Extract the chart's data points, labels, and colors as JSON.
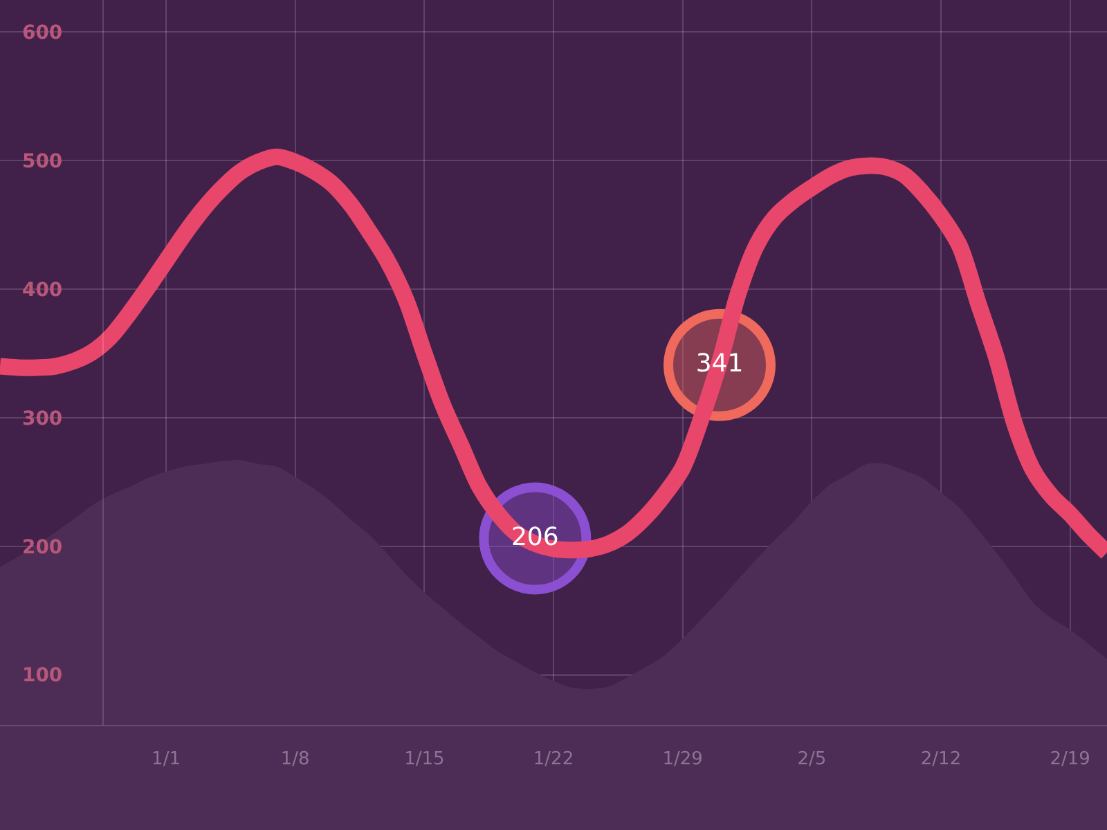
{
  "chart_data": {
    "type": "line",
    "categories": [
      null,
      null,
      null,
      null,
      null,
      null,
      null,
      null,
      null,
      "1/1",
      null,
      null,
      null,
      null,
      null,
      null,
      "1/8",
      null,
      null,
      null,
      null,
      null,
      null,
      "1/15",
      null,
      null,
      null,
      null,
      null,
      null,
      "1/22",
      null,
      null,
      null,
      null,
      null,
      null,
      "1/29",
      null,
      null,
      null,
      null,
      null,
      null,
      "2/5",
      null,
      null,
      null,
      null,
      null,
      null,
      "2/12",
      null,
      null,
      null,
      null,
      null,
      null,
      "2/19",
      null,
      null
    ],
    "ylim": [
      61,
      625
    ],
    "yticks": [
      100,
      200,
      300,
      400,
      500,
      600
    ],
    "grid": true,
    "series": [
      {
        "type": "area",
        "color": "#4d2c55",
        "values": [
          184,
          192,
          201,
          211,
          221,
          232,
          240,
          246,
          253,
          258,
          262,
          264,
          266,
          267,
          264,
          262,
          254,
          245,
          234,
          221,
          209,
          194,
          178,
          164,
          152,
          140,
          129,
          118,
          110,
          102,
          95,
          90,
          89,
          91,
          98,
          106,
          115,
          128,
          143,
          158,
          174,
          190,
          205,
          219,
          235,
          248,
          256,
          264,
          264,
          259,
          253,
          242,
          230,
          213,
          195,
          176,
          156,
          144,
          135,
          124,
          112
        ]
      },
      {
        "type": "scatter",
        "marker": "circle",
        "colors": [
          null,
          null,
          null,
          null,
          null,
          null,
          null,
          null,
          null,
          null,
          null,
          null,
          null,
          null,
          null,
          null,
          null,
          null,
          null,
          null,
          null,
          null,
          null,
          null,
          null,
          null,
          null,
          null,
          null,
          "#8b4fd1",
          null,
          null,
          null,
          null,
          null,
          null,
          null,
          null,
          null,
          "#ef6a5c",
          null,
          null,
          null,
          null,
          null,
          null,
          null,
          null,
          null,
          null,
          null,
          null,
          null,
          null,
          null,
          null,
          null,
          null,
          null,
          null,
          null
        ],
        "values": [
          null,
          null,
          null,
          null,
          null,
          null,
          null,
          null,
          null,
          null,
          null,
          null,
          null,
          null,
          null,
          null,
          null,
          null,
          null,
          null,
          null,
          null,
          null,
          null,
          null,
          null,
          null,
          null,
          null,
          206,
          null,
          null,
          null,
          null,
          null,
          null,
          null,
          null,
          null,
          341,
          null,
          null,
          null,
          null,
          null,
          null,
          null,
          null,
          null,
          null,
          null,
          null,
          null,
          null,
          null,
          null,
          null,
          null,
          null,
          null,
          null
        ],
        "value_labels": [
          null,
          null,
          null,
          null,
          null,
          null,
          null,
          null,
          null,
          null,
          null,
          null,
          null,
          null,
          null,
          null,
          null,
          null,
          null,
          null,
          null,
          null,
          null,
          null,
          null,
          null,
          null,
          null,
          null,
          "206",
          null,
          null,
          null,
          null,
          null,
          null,
          null,
          null,
          null,
          "341",
          null,
          null,
          null,
          null,
          null,
          null,
          null,
          null,
          null,
          null,
          null,
          null,
          null,
          null,
          null,
          null,
          null,
          null,
          null,
          null,
          null
        ]
      },
      {
        "color": "#e8476b",
        "marker": "none",
        "line_style": "solid",
        "values": [
          340,
          339,
          339,
          340,
          344,
          351,
          363,
          381,
          401,
          422,
          443,
          462,
          478,
          491,
          499,
          503,
          499,
          492,
          482,
          466,
          445,
          422,
          392,
          350,
          310,
          278,
          246,
          225,
          210,
          202,
          198,
          197,
          198,
          202,
          210,
          223,
          240,
          261,
          299,
          343,
          396,
          434,
          456,
          469,
          479,
          488,
          494,
          496,
          495,
          489,
          475,
          457,
          434,
          390,
          347,
          295,
          259,
          239,
          225,
          209,
          195
        ]
      }
    ]
  }
}
